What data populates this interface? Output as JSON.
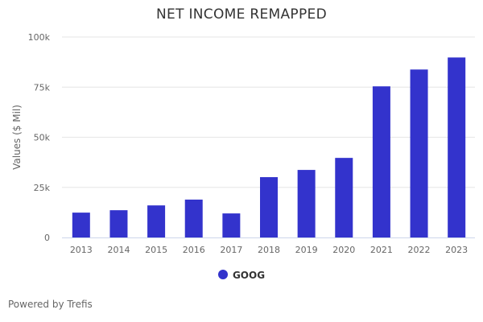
{
  "chart_data": {
    "type": "bar",
    "title": "NET INCOME REMAPPED",
    "xlabel": "",
    "ylabel": "Values ($ Mil)",
    "categories": [
      "2013",
      "2014",
      "2015",
      "2016",
      "2017",
      "2018",
      "2019",
      "2020",
      "2021",
      "2022",
      "2023"
    ],
    "series": [
      {
        "name": "GOOG",
        "color": "#3333cc",
        "values": [
          12400,
          13600,
          16000,
          18900,
          12000,
          30100,
          33700,
          39700,
          75400,
          83800,
          89800
        ]
      }
    ],
    "ylim": [
      0,
      100000
    ],
    "yticks": [
      0,
      25000,
      50000,
      75000,
      100000
    ],
    "ytick_labels": [
      "0",
      "25k",
      "50k",
      "75k",
      "100k"
    ],
    "grid": true,
    "legend": "bottom-center"
  },
  "footer": "Powered by Trefis"
}
